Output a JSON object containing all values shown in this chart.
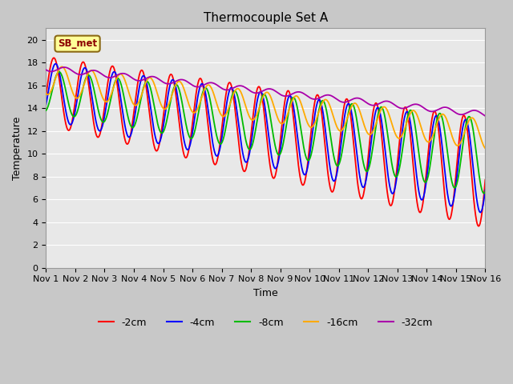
{
  "title": "Thermocouple Set A",
  "xlabel": "Time",
  "ylabel": "Temperature",
  "ylim": [
    0,
    21
  ],
  "yticks": [
    0,
    2,
    4,
    6,
    8,
    10,
    12,
    14,
    16,
    18,
    20
  ],
  "xlim": [
    0,
    15
  ],
  "xtick_labels": [
    "Nov 1",
    "Nov 2",
    "Nov 3",
    "Nov 4",
    "Nov 5",
    "Nov 6",
    "Nov 7",
    "Nov 8",
    "Nov 9",
    "Nov 10",
    "Nov 11",
    "Nov 12",
    "Nov 13",
    "Nov 14",
    "Nov 15",
    "Nov 16"
  ],
  "colors": {
    "-2cm": "#ff0000",
    "-4cm": "#0000ff",
    "-8cm": "#00bb00",
    "-16cm": "#ffaa00",
    "-32cm": "#aa00aa"
  },
  "legend_labels": [
    "-2cm",
    "-4cm",
    "-8cm",
    "-16cm",
    "-32cm"
  ],
  "annotation_text": "SB_met",
  "plot_bg_color": "#e8e8e8",
  "fig_bg_color": "#c8c8c8",
  "figsize": [
    6.4,
    4.8
  ],
  "dpi": 100
}
